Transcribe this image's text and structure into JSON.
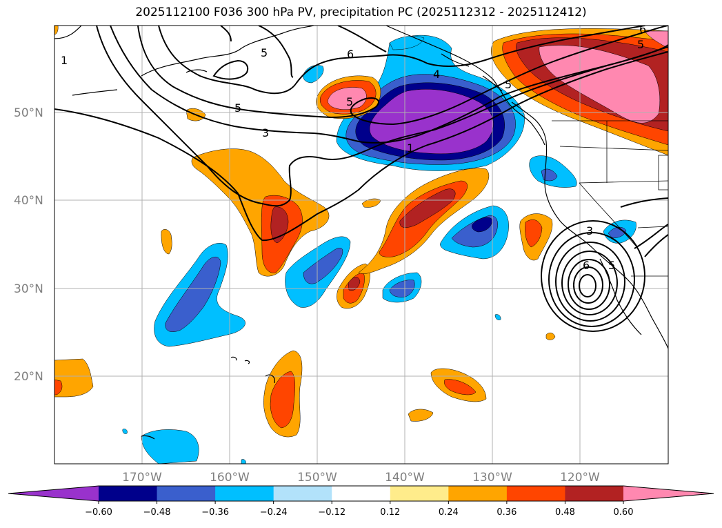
{
  "title": "2025112100 F036 300 hPa PV, precipitation PC (2025112312 - 2025112412)",
  "map": {
    "lat_ticks": [
      "50°N",
      "40°N",
      "30°N",
      "20°N"
    ],
    "lon_ticks": [
      "170°W",
      "160°W",
      "150°W",
      "140°W",
      "130°W",
      "120°W"
    ]
  },
  "contour_labels": [
    "1",
    "5",
    "6",
    "4",
    "5",
    "3",
    "5",
    "1",
    "3",
    "6",
    "5",
    "6",
    "5",
    "5"
  ],
  "colorbar": {
    "colors": [
      "#9932CC",
      "#00008B",
      "#3A5FCD",
      "#00BFFF",
      "#B2E2FA",
      "#FFFFFF",
      "#FFEC8B",
      "#FFA500",
      "#FF4500",
      "#B22222",
      "#FF88B0"
    ],
    "tick_labels": [
      "−0.60",
      "−0.48",
      "−0.36",
      "−0.24",
      "−0.12",
      "0.12",
      "0.24",
      "0.36",
      "0.48",
      "0.60"
    ]
  }
}
